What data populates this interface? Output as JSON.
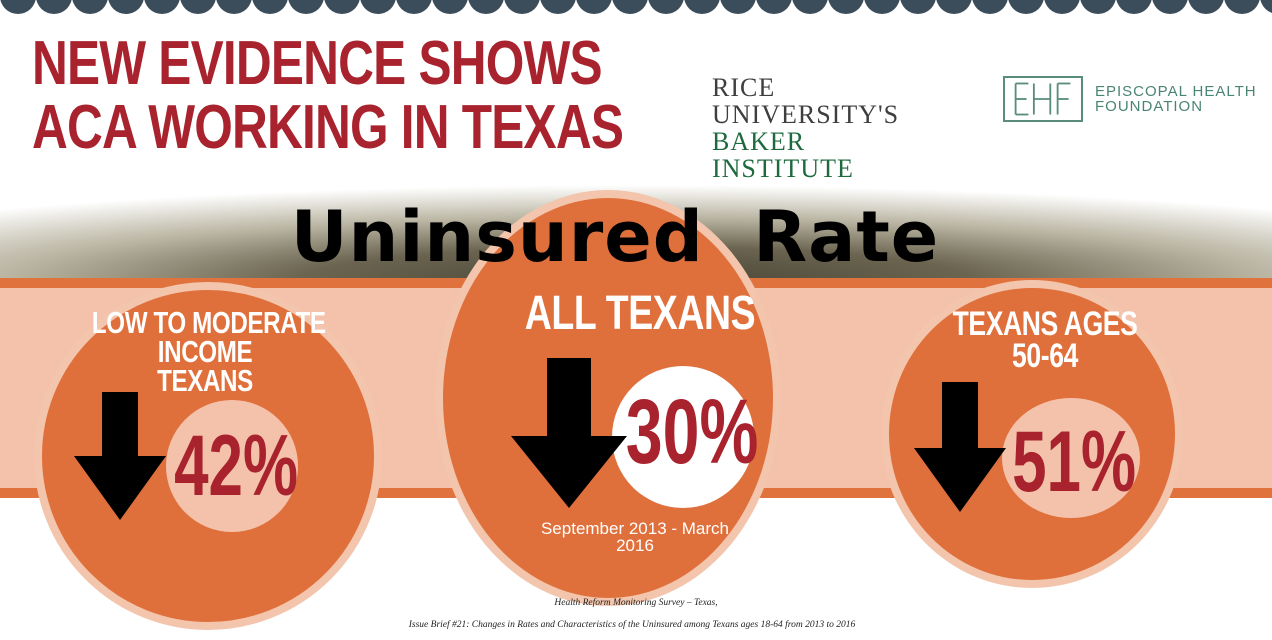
{
  "header": {
    "headline_line1": "NEW EVIDENCE SHOWS",
    "headline_line2": "ACA WORKING IN TEXAS"
  },
  "logos": {
    "rice_line1": "RICE UNIVERSITY'S",
    "rice_line2": "BAKER INSTITUTE",
    "ehf_line1": "EPISCOPAL HEALTH",
    "ehf_line2": "FOUNDATION"
  },
  "section_title": "Uninsured Rate",
  "stats": [
    {
      "label_lines": [
        "LOW TO MODERATE",
        "INCOME",
        "TEXANS"
      ],
      "change": "42%",
      "direction": "down",
      "change_value": 42
    },
    {
      "label_lines": [
        "ALL TEXANS"
      ],
      "change": "30%",
      "direction": "down",
      "change_value": 30,
      "period": "September 2013 - March 2016"
    },
    {
      "label_lines": [
        "TEXANS AGES",
        "50-64"
      ],
      "change": "51%",
      "direction": "down",
      "change_value": 51
    }
  ],
  "source": {
    "line1": "Health Reform Monitoring Survey – Texas,",
    "line2": "Issue Brief #21: Changes in Rates and Characteristics of the Uninsured among Texans ages 18-64 from 2013 to 2016"
  },
  "colors": {
    "headline_red": "#a8232d",
    "orange": "#e0703b",
    "peach": "#f4c2ab",
    "scallop": "#3b4d5b",
    "rice_green": "#1e6a3f",
    "ehf_teal": "#4a8474"
  }
}
